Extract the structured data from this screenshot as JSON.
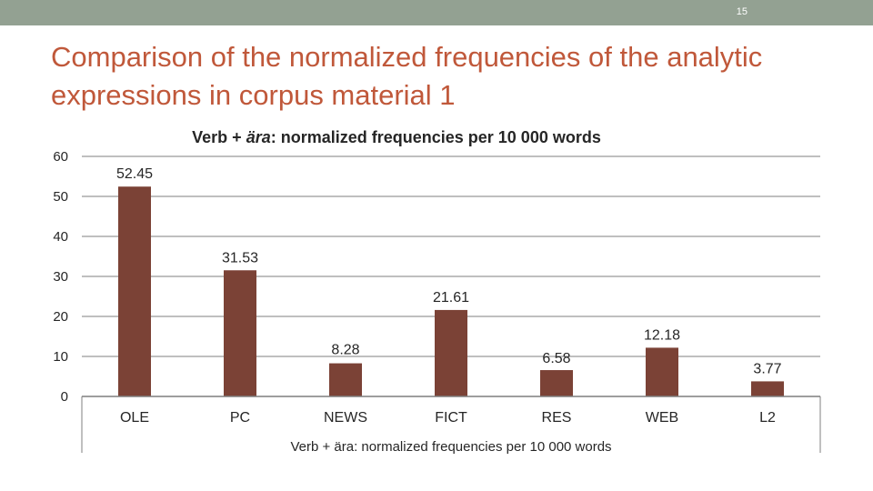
{
  "slide": {
    "page_number": "15",
    "title": "Comparison of the normalized frequencies of the analytic expressions in corpus material 1"
  },
  "colors": {
    "top_bar": "#93a192",
    "title": "#c0583a",
    "bar": "#7b4236",
    "axis_text": "#262626"
  },
  "chart_data": {
    "type": "bar",
    "title": "Verb + ära: normalized frequencies per 10 000 words",
    "title_italic_part": "ära",
    "xlabel": "Verb + ära: normalized frequencies per 10 000 words",
    "ylabel": "",
    "categories": [
      "OLE",
      "PC",
      "NEWS",
      "FICT",
      "RES",
      "WEB",
      "L2"
    ],
    "values": [
      52.45,
      31.53,
      8.28,
      21.61,
      6.58,
      12.18,
      3.77
    ],
    "value_labels": [
      "52.45",
      "31.53",
      "8.28",
      "21.61",
      "6.58",
      "12.18",
      "3.77"
    ],
    "ylim": [
      0,
      60
    ],
    "yticks": [
      0,
      10,
      20,
      30,
      40,
      50,
      60
    ],
    "grid": true,
    "legend": "none"
  }
}
